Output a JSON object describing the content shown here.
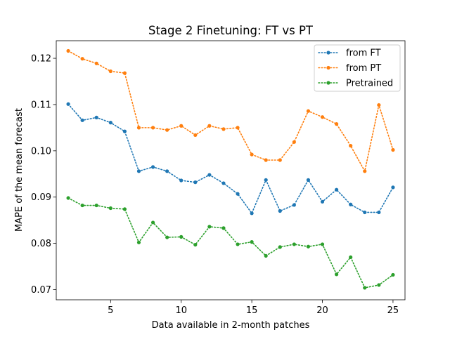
{
  "chart_data": {
    "type": "line",
    "title": "Stage 2 Finetuning: FT vs PT",
    "xlabel": "Data available in 2-month patches",
    "ylabel": "MAPE of the mean forecast",
    "xlim": [
      1.15,
      25.85
    ],
    "ylim": [
      0.0678,
      0.1238
    ],
    "xticks": [
      5,
      10,
      15,
      20,
      25
    ],
    "yticks": [
      0.07,
      0.08,
      0.09,
      0.1,
      0.11,
      0.12
    ],
    "ytick_labels": [
      "0.07",
      "0.08",
      "0.09",
      "0.10",
      "0.11",
      "0.12"
    ],
    "legend_position": "top-right",
    "grid": false,
    "x": [
      2,
      3,
      4,
      5,
      6,
      7,
      8,
      9,
      10,
      11,
      12,
      13,
      14,
      15,
      16,
      17,
      18,
      19,
      20,
      21,
      22,
      23,
      24,
      25
    ],
    "series": [
      {
        "name": "from FT",
        "color": "#1f77b4",
        "values": [
          0.1101,
          0.1066,
          0.1072,
          0.1061,
          0.1042,
          0.0956,
          0.0965,
          0.0956,
          0.0936,
          0.0932,
          0.0948,
          0.093,
          0.0907,
          0.0865,
          0.0937,
          0.087,
          0.0883,
          0.0937,
          0.089,
          0.0916,
          0.0884,
          0.0867,
          0.0867,
          0.0921
        ]
      },
      {
        "name": "from PT",
        "color": "#ff7f0e",
        "values": [
          0.1216,
          0.1199,
          0.1189,
          0.1172,
          0.1168,
          0.105,
          0.105,
          0.1045,
          0.1054,
          0.1034,
          0.1054,
          0.1047,
          0.105,
          0.0992,
          0.098,
          0.098,
          0.1019,
          0.1086,
          0.1073,
          0.1058,
          0.1011,
          0.0956,
          0.1099,
          0.1002
        ]
      },
      {
        "name": "Pretrained",
        "color": "#2ca02c",
        "values": [
          0.0898,
          0.0882,
          0.0882,
          0.0876,
          0.0874,
          0.0802,
          0.0845,
          0.0813,
          0.0814,
          0.0797,
          0.0836,
          0.0833,
          0.0798,
          0.0803,
          0.0773,
          0.0792,
          0.0798,
          0.0793,
          0.0798,
          0.0733,
          0.077,
          0.0704,
          0.071,
          0.0732
        ]
      }
    ]
  }
}
